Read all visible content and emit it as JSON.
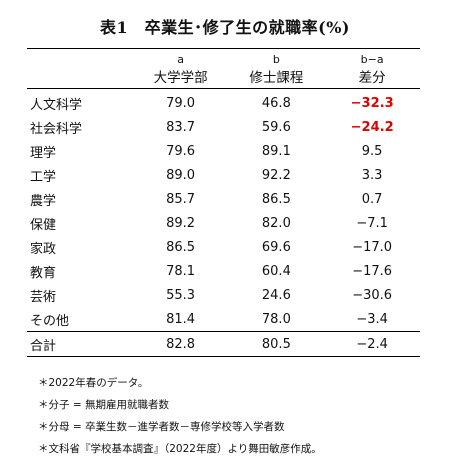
{
  "title": "表1　卒業生･修了生の就職率(%)",
  "header": {
    "col_a_letter": "a",
    "col_b_letter": "b",
    "col_diff_letter": "b−a",
    "col_a_label": "大学学部",
    "col_b_label": "修士課程",
    "col_diff_label": "差分"
  },
  "rows": [
    {
      "field": "人文科学",
      "a": "79.0",
      "b": "46.8",
      "diff": "−32.3"
    },
    {
      "field": "社会科学",
      "a": "83.7",
      "b": "59.6",
      "diff": "−24.2"
    },
    {
      "field": "理学",
      "a": "79.6",
      "b": "89.1",
      "diff": "9.5"
    },
    {
      "field": "工学",
      "a": "89.0",
      "b": "92.2",
      "diff": "3.3"
    },
    {
      "field": "農学",
      "a": "85.7",
      "b": "86.5",
      "diff": "0.7"
    },
    {
      "field": "保健",
      "a": "89.2",
      "b": "82.0",
      "diff": "−7.1"
    },
    {
      "field": "家政",
      "a": "86.5",
      "b": "69.6",
      "diff": "−17.0"
    },
    {
      "field": "教育",
      "a": "78.1",
      "b": "60.4",
      "diff": "−17.6"
    },
    {
      "field": "芸術",
      "a": "55.3",
      "b": "24.6",
      "diff": "−30.6"
    },
    {
      "field": "その他",
      "a": "81.4",
      "b": "78.0",
      "diff": "−3.4"
    }
  ],
  "total": {
    "field": "合計",
    "a": "82.8",
    "b": "80.5",
    "diff": "−2.4"
  },
  "notes": [
    "＊2022年春のデータ。",
    "＊分子 = 無期雇用就職者数",
    "＊分母 = 卒業生数－進学者数－専修学校等入学者数",
    "＊文科省『学校基本調査』（2022年度）より舞田敏彦作成。"
  ],
  "colors": {
    "highlight_negative": "#e00000"
  }
}
